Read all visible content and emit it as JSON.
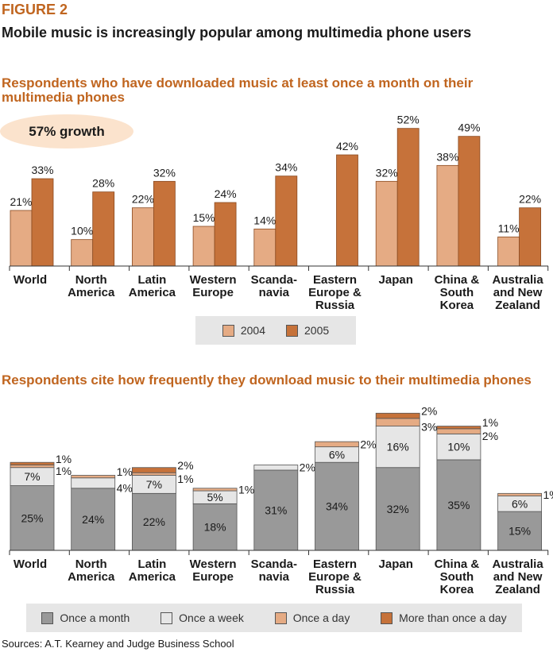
{
  "figure_label": "FIGURE 2",
  "figure_title": "Mobile music is increasingly popular among multimedia phone users",
  "growth_callout": "57% growth",
  "source": "Sources: A.T. Kearney and Judge Business School",
  "colors": {
    "c2004": "#e5ab84",
    "c2005": "#c6723a",
    "once_month": "#999999",
    "once_week": "#e6e6e6",
    "once_day": "#e5ab84",
    "more_than_once_day": "#c6723a",
    "accent": "#c0651f"
  },
  "chart_data": [
    {
      "type": "bar",
      "title": "Respondents who have downloaded music at least once a month on their multimedia phones",
      "categories": [
        [
          "World"
        ],
        [
          "North",
          "America"
        ],
        [
          "Latin",
          "America"
        ],
        [
          "Western",
          "Europe"
        ],
        [
          "Scanda-",
          "navia"
        ],
        [
          "Eastern",
          "Europe &",
          "Russia"
        ],
        [
          "Japan"
        ],
        [
          "China &",
          "South",
          "Korea"
        ],
        [
          "Australia",
          "and New",
          "Zealand"
        ]
      ],
      "series": [
        {
          "name": "2004",
          "values": [
            21,
            10,
            22,
            15,
            14,
            null,
            32,
            38,
            11
          ]
        },
        {
          "name": "2005",
          "values": [
            33,
            28,
            32,
            24,
            34,
            42,
            52,
            49,
            22
          ]
        }
      ],
      "value_suffix": "%",
      "ylim": [
        0,
        57
      ],
      "legend": "bottom-center"
    },
    {
      "type": "bar",
      "stacked": true,
      "title": "Respondents cite how frequently they download music to their multimedia phones",
      "categories": [
        [
          "World"
        ],
        [
          "North",
          "America"
        ],
        [
          "Latin",
          "America"
        ],
        [
          "Western",
          "Europe"
        ],
        [
          "Scanda-",
          "navia"
        ],
        [
          "Eastern",
          "Europe &",
          "Russia"
        ],
        [
          "Japan"
        ],
        [
          "China &",
          "South",
          "Korea"
        ],
        [
          "Australia",
          "and New",
          "Zealand"
        ]
      ],
      "series": [
        {
          "name": "Once a month",
          "values": [
            25,
            24,
            22,
            18,
            31,
            34,
            32,
            35,
            15
          ]
        },
        {
          "name": "Once a week",
          "values": [
            7,
            4,
            7,
            5,
            2,
            6,
            16,
            10,
            6
          ]
        },
        {
          "name": "Once a day",
          "values": [
            1,
            1,
            1,
            1,
            0,
            2,
            3,
            2,
            1
          ]
        },
        {
          "name": "More than once a day",
          "values": [
            1,
            0,
            2,
            0,
            0,
            0,
            2,
            1,
            0
          ]
        }
      ],
      "value_suffix": "%",
      "ylim": [
        0,
        58
      ],
      "legend": "bottom-center"
    }
  ]
}
